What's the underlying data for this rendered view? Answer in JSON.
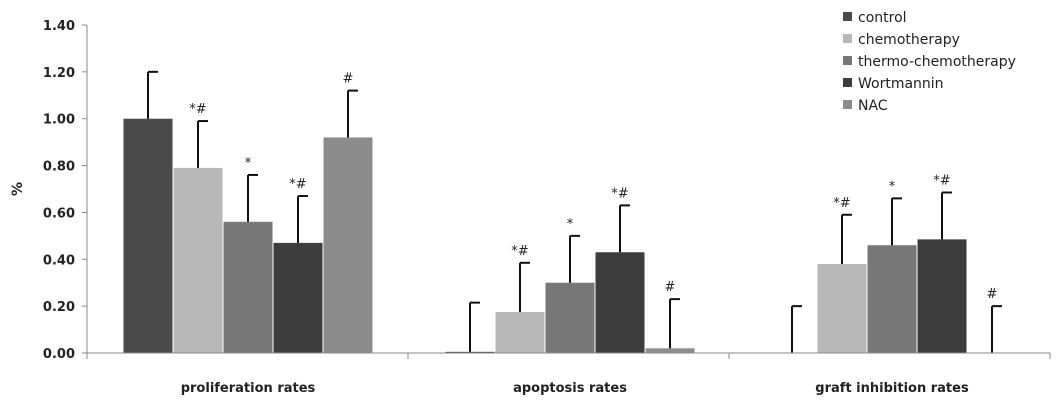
{
  "chart_data": {
    "type": "bar",
    "ylabel": "%",
    "xlabel": "",
    "ylim": [
      0,
      1.4
    ],
    "yticks": [
      "0.00",
      "0.20",
      "0.40",
      "0.60",
      "0.80",
      "1.00",
      "1.20",
      "1.40"
    ],
    "grid": false,
    "legend_position": "top-right",
    "categories": [
      "proliferation rates",
      "apoptosis rates",
      "graft inhibition rates"
    ],
    "series": [
      {
        "name": "control",
        "color": "#4a4a4a",
        "values": [
          1.0,
          0.005,
          0.0
        ],
        "errors": [
          0.2,
          0.21,
          0.2
        ],
        "annotations": [
          "",
          "",
          ""
        ]
      },
      {
        "name": "chemotherapy",
        "color": "#b8b8b8",
        "values": [
          0.79,
          0.175,
          0.38
        ],
        "errors": [
          0.2,
          0.21,
          0.21
        ],
        "annotations": [
          "*#",
          "*#",
          "*#"
        ]
      },
      {
        "name": "thermo-chemotherapy",
        "color": "#777777",
        "values": [
          0.56,
          0.3,
          0.46
        ],
        "errors": [
          0.2,
          0.2,
          0.2
        ],
        "annotations": [
          "*",
          "*",
          "*"
        ]
      },
      {
        "name": "Wortmannin",
        "color": "#3d3d3d",
        "values": [
          0.47,
          0.43,
          0.485
        ],
        "errors": [
          0.2,
          0.2,
          0.2
        ],
        "annotations": [
          "*#",
          "*#",
          "*#"
        ]
      },
      {
        "name": "NAC",
        "color": "#8c8c8c",
        "values": [
          0.92,
          0.02,
          0.0
        ],
        "errors": [
          0.2,
          0.21,
          0.2
        ],
        "annotations": [
          "#",
          "#",
          "#"
        ]
      }
    ]
  }
}
